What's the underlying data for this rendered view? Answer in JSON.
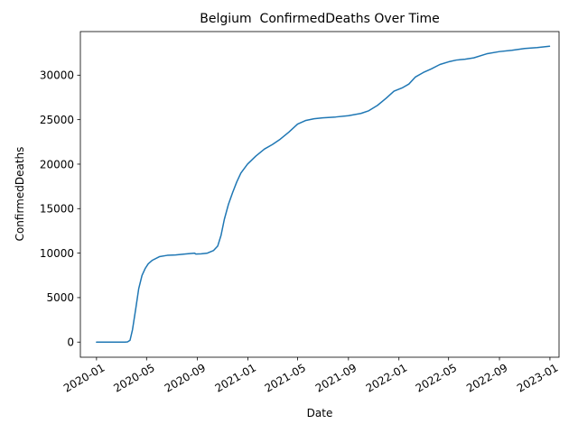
{
  "chart_data": {
    "type": "line",
    "title": "Belgium  ConfirmedDeaths Over Time",
    "xlabel": "Date",
    "ylabel": "ConfirmedDeaths",
    "xlim": [
      "2019-11-23",
      "2023-01-23"
    ],
    "ylim": [
      -1700,
      34900
    ],
    "grid": false,
    "x_ticks": [
      "2020-01",
      "2020-05",
      "2020-09",
      "2021-01",
      "2021-05",
      "2021-09",
      "2022-01",
      "2022-05",
      "2022-09",
      "2023-01"
    ],
    "y_ticks": [
      0,
      5000,
      10000,
      15000,
      20000,
      25000,
      30000
    ],
    "y_tick_labels": [
      "0",
      "5000",
      "10000",
      "15000",
      "20000",
      "25000",
      "30000"
    ],
    "series": [
      {
        "color": "#1f77b4",
        "x": [
          "2020-01-01",
          "2020-03-10",
          "2020-03-16",
          "2020-03-22",
          "2020-03-28",
          "2020-04-05",
          "2020-04-12",
          "2020-04-20",
          "2020-04-28",
          "2020-05-05",
          "2020-05-15",
          "2020-06-01",
          "2020-06-20",
          "2020-07-10",
          "2020-08-01",
          "2020-08-25",
          "2020-08-28",
          "2020-09-10",
          "2020-09-25",
          "2020-10-10",
          "2020-10-20",
          "2020-10-28",
          "2020-11-05",
          "2020-11-15",
          "2020-11-25",
          "2020-12-05",
          "2020-12-15",
          "2020-12-31",
          "2021-01-20",
          "2021-02-10",
          "2021-03-01",
          "2021-03-20",
          "2021-04-10",
          "2021-05-01",
          "2021-05-20",
          "2021-06-10",
          "2021-07-01",
          "2021-08-01",
          "2021-09-01",
          "2021-10-01",
          "2021-10-20",
          "2021-11-10",
          "2021-12-01",
          "2021-12-20",
          "2022-01-10",
          "2022-01-25",
          "2022-02-10",
          "2022-03-01",
          "2022-03-20",
          "2022-04-10",
          "2022-05-01",
          "2022-05-20",
          "2022-06-10",
          "2022-07-01",
          "2022-08-01",
          "2022-09-01",
          "2022-10-01",
          "2022-11-01",
          "2022-12-01",
          "2022-12-31"
        ],
        "y": [
          0,
          0,
          20,
          200,
          1400,
          3800,
          6000,
          7500,
          8300,
          8800,
          9200,
          9600,
          9750,
          9800,
          9900,
          10000,
          9900,
          9920,
          10000,
          10300,
          10800,
          12000,
          13800,
          15500,
          16800,
          18000,
          19000,
          20000,
          20900,
          21700,
          22200,
          22800,
          23600,
          24500,
          24900,
          25100,
          25200,
          25300,
          25450,
          25700,
          26000,
          26600,
          27400,
          28200,
          28600,
          29000,
          29800,
          30300,
          30700,
          31200,
          31500,
          31700,
          31800,
          31950,
          32400,
          32650,
          32800,
          33000,
          33100,
          33250
        ]
      }
    ]
  }
}
